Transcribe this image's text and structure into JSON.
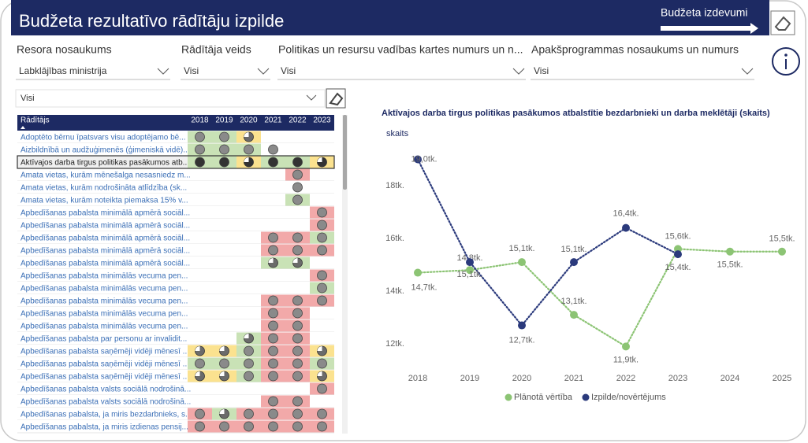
{
  "header": {
    "title": "Budžeta rezultatīvo rādītāju izpilde",
    "button": "Budžeta izdevumi"
  },
  "filters": [
    {
      "label": "Resora nosaukums",
      "value": "Labklājības ministrija"
    },
    {
      "label": "Rādītāja veids",
      "value": "Visi"
    },
    {
      "label": "Politikas un resursu vadības kartes numurs un n...",
      "value": "Visi"
    },
    {
      "label": "Apakšprogrammas nosaukums un numurs",
      "value": "Visi"
    }
  ],
  "search": {
    "value": "Visi"
  },
  "table": {
    "columns": [
      "Rādītājs",
      "2018",
      "2019",
      "2020",
      "2021",
      "2022",
      "2023"
    ],
    "rows": [
      "Adoptēto bērnu īpatsvars visu adoptējamo bē...",
      "Aizbildnībā un audžuģimenēs (ģimeniskā vidē)...",
      "Aktīvajos darba tirgus politikas pasākumos atb...",
      "Amata vietas, kurām mēnešalga nesasniedz m...",
      "Amata vietas, kurām nodrošināta atlīdzība (sk...",
      "Amata vietas, kurām noteikta piemaksa 15% v...",
      "Apbedīšanas pabalsta minimālā apmērā sociāl...",
      "Apbedīšanas pabalsta minimālā apmērā sociāl...",
      "Apbedīšanas pabalsta minimālā apmērā sociāl...",
      "Apbedīšanas pabalsta minimālā apmērā sociāl...",
      "Apbedīšanas pabalsta minimālā apmērā sociāl...",
      "Apbedīšanas pabalsta minimālās vecuma pen...",
      "Apbedīšanas pabalsta minimālās vecuma pen...",
      "Apbedīšanas pabalsta minimālās vecuma pen...",
      "Apbedīšanas pabalsta minimālās vecuma pen...",
      "Apbedīšanas pabalsta minimālās vecuma pen...",
      "Apbedīšanas pabalsta par personu ar invalidit...",
      "Apbedīšanas pabalsta saņēmēji vidēji mēnesī ...",
      "Apbedīšanas pabalsta saņēmēji vidēji mēnesī ...",
      "Apbedīšanas pabalsta saņēmēji vidēji mēnesī ...",
      "Apbedīšanas pabalsta valsts sociālā nodrošinā...",
      "Apbedīšanas pabalsta valsts sociālā nodrošinā...",
      "Apbedīšanas pabalsta, ja miris bezdarbnieks, s...",
      "Apbedīšanas pabalsta, ja miris izdienas pensij..."
    ]
  },
  "chart_data": {
    "type": "line",
    "title": "Aktīvajos darba tirgus politikas pasākumos atbalstītie bezdarbnieki un darba meklētāji (skaits)",
    "y_label": "skaits",
    "categories": [
      "2018",
      "2019",
      "2020",
      "2021",
      "2022",
      "2023",
      "2024",
      "2025"
    ],
    "series": [
      {
        "name": "Plānotā vērtība",
        "color": "#8cc474",
        "values": [
          14.7,
          14.8,
          15.1,
          13.1,
          11.9,
          15.6,
          15.5,
          15.5
        ],
        "value_labels": [
          "14,7tk.",
          "14,8tk.",
          "15,1tk.",
          "13,1tk.",
          "11,9tk.",
          "15,6tk.",
          "15,5tk.",
          "15,5tk."
        ]
      },
      {
        "name": "Izpilde/novērtējums",
        "color": "#2b3a7c",
        "values": [
          19.0,
          15.1,
          12.7,
          15.1,
          16.4,
          15.4,
          null,
          null
        ],
        "value_labels": [
          "19,0tk.",
          "15,1tk.",
          "12,7tk.",
          "15,1tk.",
          "16,4tk.",
          "15,4tk.",
          null,
          null
        ]
      }
    ],
    "ylim": [
      11.2,
      19.4
    ],
    "yticks": [
      {
        "value": 12,
        "label": "12tk."
      },
      {
        "value": 14,
        "label": "14tk."
      },
      {
        "value": 16,
        "label": "16tk."
      },
      {
        "value": 18,
        "label": "18tk."
      }
    ],
    "grid": false,
    "legend": "bottom"
  }
}
